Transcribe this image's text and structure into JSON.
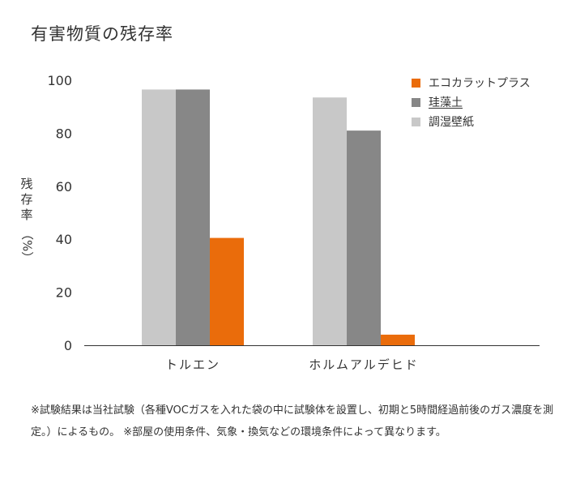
{
  "title": "有害物質の残存率",
  "chart_data": {
    "type": "bar",
    "title": "有害物質の残存率",
    "ylabel": "残存率",
    "ylabel_unit": "%",
    "ylim": [
      0,
      100
    ],
    "yticks": [
      0,
      20,
      40,
      60,
      80,
      100
    ],
    "categories": [
      "トルエン",
      "ホルムアルデヒド"
    ],
    "series": [
      {
        "name": "調湿壁紙",
        "color": "#c8c8c8",
        "values": [
          96.5,
          93.5
        ]
      },
      {
        "name": "珪藻土",
        "color": "#878787",
        "values": [
          96.5,
          81
        ]
      },
      {
        "name": "エコカラットプラス",
        "color": "#ea6c0b",
        "values": [
          40.5,
          4
        ]
      }
    ],
    "legend": [
      {
        "name": "エコカラットプラス",
        "color": "#ea6c0b"
      },
      {
        "name": "珪藻土",
        "color": "#878787"
      },
      {
        "name": "調湿壁紙",
        "color": "#c8c8c8"
      }
    ],
    "legend_position": "top-right",
    "grid": false
  },
  "note": "※試験結果は当社試験（各種VOCガスを入れた袋の中に試験体を設置し、初期と5時間経過前後のガス濃度を測定。）によるもの。 ※部屋の使用条件、気象・換気などの環境条件によって異なります。"
}
